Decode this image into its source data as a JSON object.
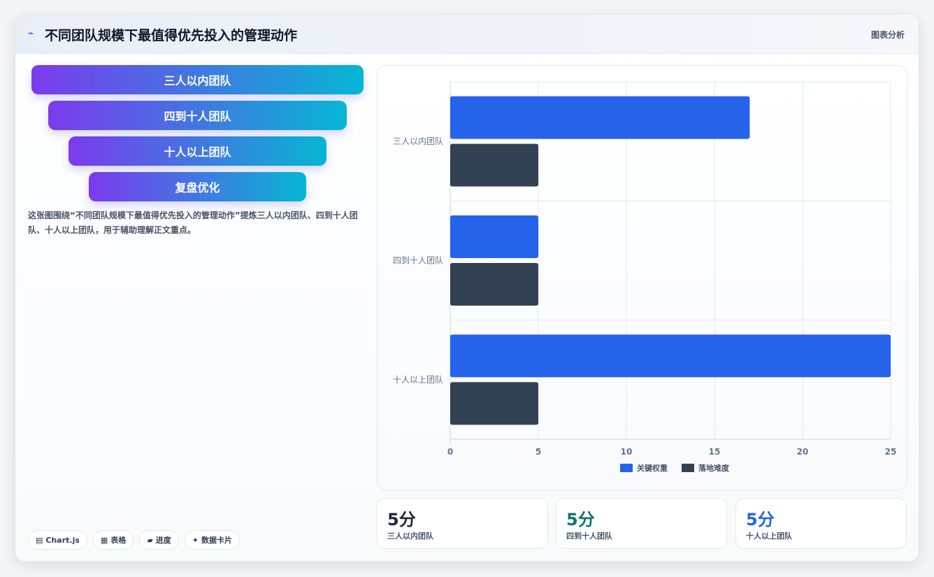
{
  "header": {
    "icon": "trend-icon",
    "title": "不同团队规模下最值得优先投入的管理动作",
    "right_label": "图表分析"
  },
  "funnel": {
    "stages": [
      "三人以内团队",
      "四到十人团队",
      "十人以上团队",
      "复盘优化"
    ]
  },
  "description": "这张图围绕“不同团队规模下最值得优先投入的管理动作”提炼三人以内团队、四到十人团队、十人以上团队，用于辅助理解正文重点。",
  "tags": [
    {
      "icon": "chart-icon",
      "label": "Chart.js"
    },
    {
      "icon": "table-icon",
      "label": "表格"
    },
    {
      "icon": "progress-icon",
      "label": "进度"
    },
    {
      "icon": "sparkle-icon",
      "label": "数据卡片"
    }
  ],
  "chart_data": {
    "type": "bar",
    "orientation": "horizontal",
    "categories": [
      "三人以内团队",
      "四到十人团队",
      "十人以上团队"
    ],
    "series": [
      {
        "name": "关键权重",
        "values": [
          17,
          5,
          25
        ],
        "color": "#2563eb"
      },
      {
        "name": "落地难度",
        "values": [
          5,
          5,
          5
        ],
        "color": "#334155"
      }
    ],
    "xlim": [
      0,
      25
    ],
    "xticks": [
      0,
      5,
      10,
      15,
      20,
      25
    ],
    "grid": true,
    "legend": "bottom"
  },
  "stats": [
    {
      "value": "5分",
      "label": "三人以内团队",
      "color": "#1e293b"
    },
    {
      "value": "5分",
      "label": "四到十人团队",
      "color": "#0f766e"
    },
    {
      "value": "5分",
      "label": "十人以上团队",
      "color": "#2563eb"
    }
  ]
}
